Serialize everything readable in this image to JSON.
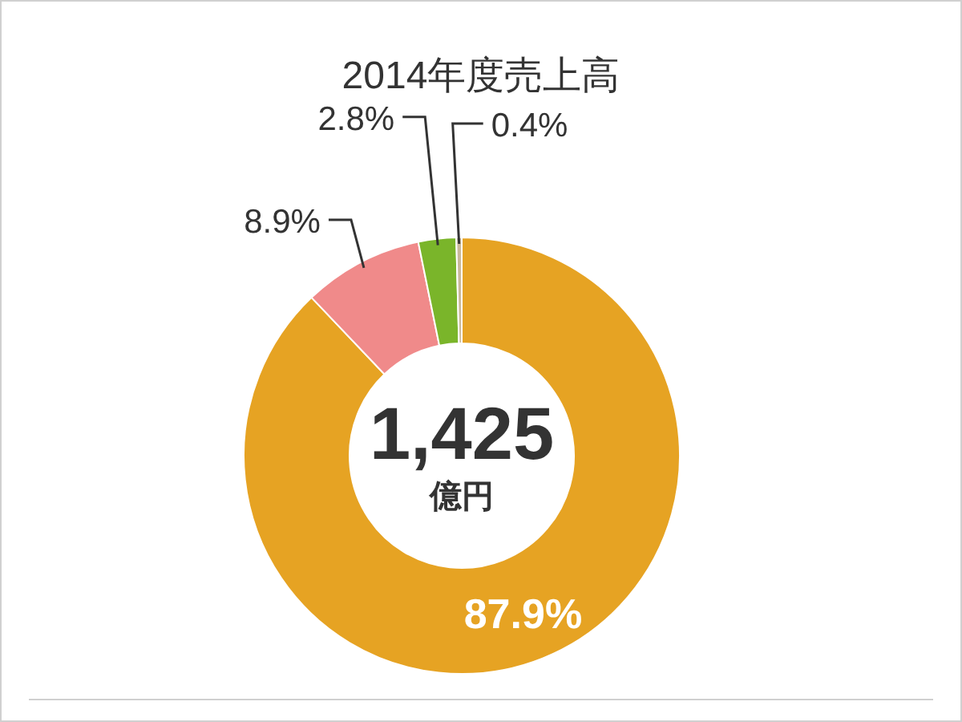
{
  "chart_data": {
    "type": "donut",
    "title": "2014年度売上高",
    "categories": [
      null,
      null,
      null,
      null
    ],
    "values": [
      87.9,
      8.9,
      2.8,
      0.4
    ],
    "colors": [
      "#e6a323",
      "#f08a8a",
      "#7ab52a",
      "#c9b99c"
    ],
    "value_labels": [
      "87.9%",
      "8.9%",
      "2.8%",
      "0.4%"
    ],
    "annotations": [
      "1,425",
      "億円"
    ]
  }
}
